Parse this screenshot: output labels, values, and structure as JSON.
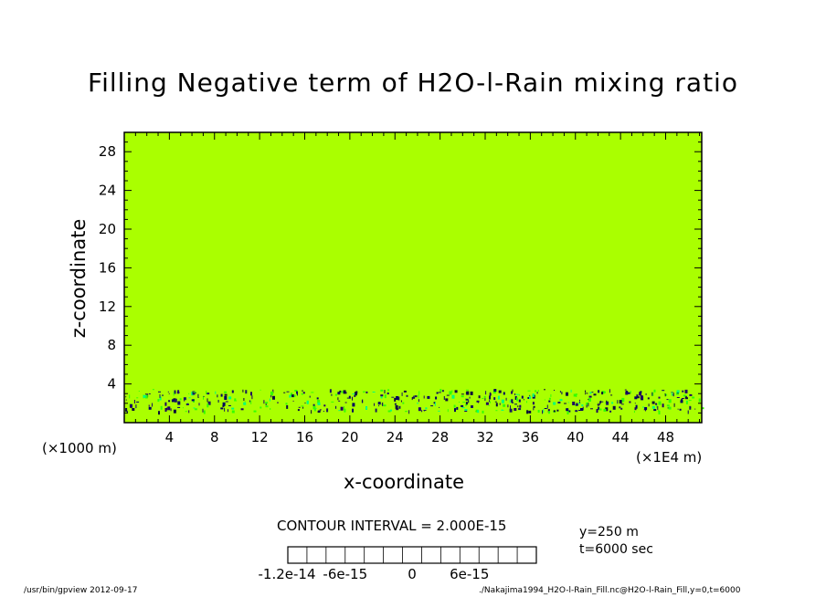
{
  "chart_data": {
    "type": "heatmap",
    "title": "Filling Negative term of H2O-l-Rain mixing ratio",
    "xlabel": "x-coordinate",
    "ylabel": "z-coordinate",
    "x_unit_left": "(×1000 m)",
    "x_unit_right": "(×1E4 m)",
    "xlim": [
      0,
      51.2
    ],
    "ylim": [
      0,
      30
    ],
    "xticks": [
      4,
      8,
      12,
      16,
      20,
      24,
      28,
      32,
      36,
      40,
      44,
      48
    ],
    "yticks": [
      4,
      8,
      12,
      16,
      20,
      24,
      28
    ],
    "background_value": 0,
    "background_color": "#aaff00",
    "noise_band_z": [
      1.2,
      3.5
    ],
    "contour_interval": "CONTOUR INTERVAL = 2.000E-15",
    "colorbar": {
      "colors": [
        "#5a00a0",
        "#0000c8",
        "#0050ff",
        "#00a0ff",
        "#00e6c8",
        "#00ff78",
        "#32ff00",
        "#aaff00",
        "#ffd700",
        "#ff9600",
        "#ff5000",
        "#ff2828",
        "#ff9e9e"
      ],
      "tick_labels": [
        "-1.2e-14",
        "-6e-15",
        "0",
        "6e-15"
      ]
    },
    "annotations": {
      "y": "y=250 m",
      "t": "t=6000 sec"
    }
  },
  "footer": {
    "left": "/usr/bin/gpview  2012-09-17",
    "right": "./Nakajima1994_H2O-l-Rain_Fill.nc@H2O-l-Rain_Fill,y=0,t=6000"
  }
}
